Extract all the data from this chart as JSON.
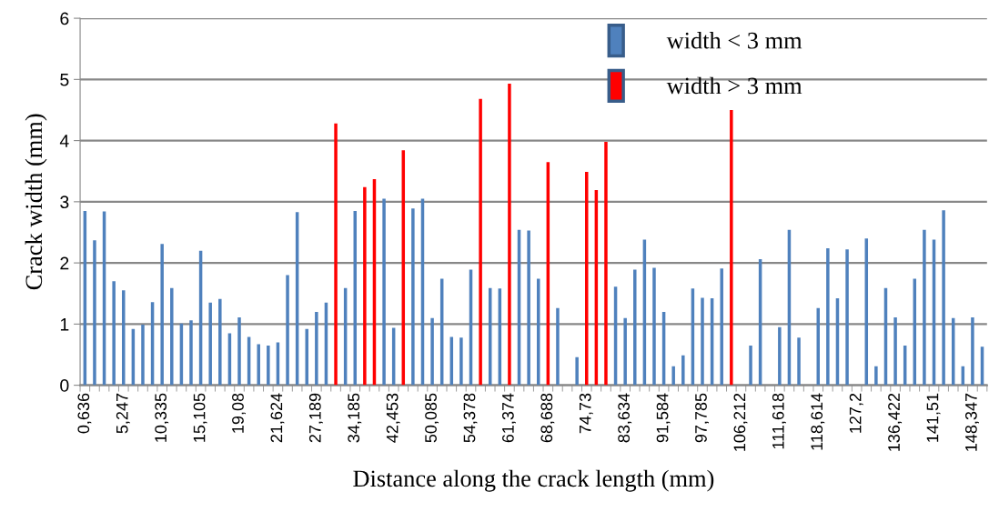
{
  "chart_data": {
    "type": "bar",
    "xlabel": "Distance along the crack length (mm)",
    "ylabel": "Crack width (mm)",
    "categories": [
      "0,636",
      null,
      null,
      null,
      "5,247",
      null,
      null,
      null,
      "10,335",
      null,
      null,
      null,
      "15,105",
      null,
      null,
      null,
      "19,08",
      null,
      null,
      null,
      "21,624",
      null,
      null,
      null,
      "27,189",
      null,
      null,
      null,
      "34,185",
      null,
      null,
      null,
      "42,453",
      null,
      null,
      null,
      "50,085",
      null,
      null,
      null,
      "54,378",
      null,
      null,
      null,
      "61,374",
      null,
      null,
      null,
      "68,688",
      null,
      null,
      null,
      "74,73",
      null,
      null,
      null,
      "83,634",
      null,
      null,
      null,
      "91,584",
      null,
      null,
      null,
      "97,785",
      null,
      null,
      null,
      "106,212",
      null,
      null,
      null,
      "111,618",
      null,
      null,
      null,
      "118,614",
      null,
      null,
      null,
      "127,2",
      null,
      null,
      null,
      "136,422",
      null,
      null,
      null,
      "141,51",
      null,
      null,
      null,
      "148,347",
      null
    ],
    "series": [
      {
        "name": "width < 3 mm",
        "color": "#4f81bd",
        "values": [
          2.85,
          2.37,
          2.84,
          1.7,
          1.55,
          0.92,
          0.99,
          1.36,
          2.31,
          1.59,
          1.01,
          1.06,
          2.2,
          1.35,
          1.41,
          0.85,
          1.11,
          0.79,
          0.67,
          0.65,
          0.7,
          1.8,
          2.83,
          0.92,
          1.2,
          1.35,
          null,
          1.59,
          2.85,
          null,
          null,
          3.05,
          0.94,
          null,
          2.89,
          3.05,
          1.1,
          1.74,
          0.79,
          0.78,
          1.89,
          null,
          1.59,
          1.58,
          null,
          2.54,
          2.53,
          1.74,
          null,
          1.26,
          null,
          0.46,
          null,
          null,
          null,
          1.61,
          1.1,
          1.89,
          2.38,
          1.92,
          1.2,
          0.31,
          0.49,
          1.58,
          1.43,
          1.42,
          1.91,
          null,
          null,
          0.65,
          2.06,
          null,
          0.95,
          2.54,
          0.78,
          null,
          1.26,
          2.24,
          1.42,
          2.22,
          null,
          2.4,
          0.31,
          1.59,
          1.11,
          0.65,
          1.74,
          2.54,
          2.38,
          2.86,
          1.1,
          0.31,
          1.11,
          0.63
        ]
      },
      {
        "name": "width > 3 mm",
        "color": "#ff0000",
        "values": [
          null,
          null,
          null,
          null,
          null,
          null,
          null,
          null,
          null,
          null,
          null,
          null,
          null,
          null,
          null,
          null,
          null,
          null,
          null,
          null,
          null,
          null,
          null,
          null,
          null,
          null,
          4.28,
          null,
          null,
          3.24,
          3.37,
          null,
          null,
          3.84,
          null,
          null,
          null,
          null,
          null,
          null,
          null,
          4.68,
          null,
          null,
          4.93,
          null,
          null,
          null,
          3.65,
          null,
          null,
          null,
          3.49,
          3.19,
          3.98,
          null,
          null,
          null,
          null,
          null,
          null,
          null,
          null,
          null,
          null,
          null,
          null,
          4.5,
          null,
          null,
          null,
          null,
          null,
          null,
          null,
          null,
          null,
          null,
          null,
          null,
          null,
          null,
          null,
          null,
          null,
          null,
          null,
          null,
          null,
          null,
          null,
          null,
          null,
          null
        ]
      }
    ],
    "ylim": [
      0,
      6
    ],
    "yticks": [
      0,
      1,
      2,
      3,
      4,
      5,
      6
    ],
    "grid": "y",
    "legend": "top right"
  }
}
